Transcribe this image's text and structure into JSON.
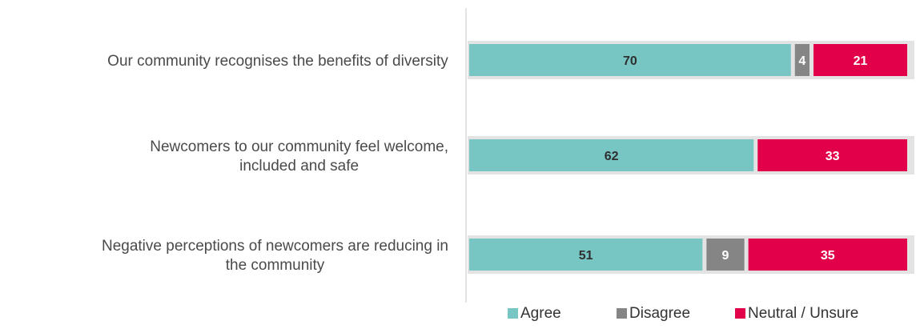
{
  "chart_data": {
    "type": "bar",
    "orientation": "horizontal",
    "stacked": true,
    "categories": [
      [
        "Our community recognises the benefits of diversity"
      ],
      [
        "Newcomers to our community feel welcome,",
        "included and safe"
      ],
      [
        "Negative perceptions of newcomers are reducing in",
        "the community"
      ]
    ],
    "series": [
      {
        "name": "Agree",
        "color": "#78c6c4",
        "label_color": "#2f2f2f",
        "values": [
          70,
          62,
          51
        ]
      },
      {
        "name": "Disagree",
        "color": "#858585",
        "label_color": "#ffffff",
        "values": [
          4,
          0,
          9
        ]
      },
      {
        "name": "Neutral / Unsure",
        "color": "#e2004a",
        "label_color": "#ffffff",
        "values": [
          21,
          33,
          35
        ]
      }
    ],
    "xlim": [
      0,
      95
    ],
    "legend_position": "bottom",
    "grid": false,
    "title": "",
    "xlabel": "",
    "ylabel": ""
  }
}
